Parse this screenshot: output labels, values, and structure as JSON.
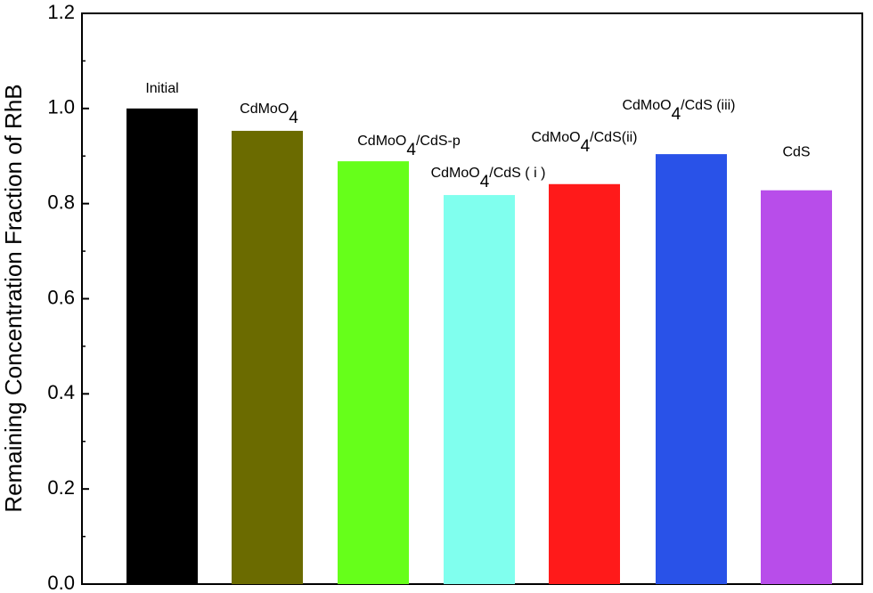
{
  "chart_data": {
    "type": "bar",
    "y_label": "Remaining Concentration Fraction of RhB",
    "categories": [
      "Initial",
      "CdMoO4",
      "CdMoO4/CdS-p",
      "CdMoO4/CdS ( i )",
      "CdMoO4/CdS(ii)",
      "CdMoO4/CdS (iii)",
      "CdS"
    ],
    "values": [
      1.0,
      0.953,
      0.889,
      0.818,
      0.841,
      0.904,
      0.828
    ],
    "colors": [
      "#000000",
      "#6b6b00",
      "#66ff1a",
      "#80ffee",
      "#ff1a1a",
      "#2952e8",
      "#b84dea"
    ],
    "ylim": [
      0,
      1.2
    ],
    "yticks": [
      {
        "value": 0,
        "label": "0.0"
      },
      0.2,
      0.4,
      0.6,
      0.8,
      {
        "value": 1,
        "label": "1.0"
      },
      1.2
    ]
  }
}
